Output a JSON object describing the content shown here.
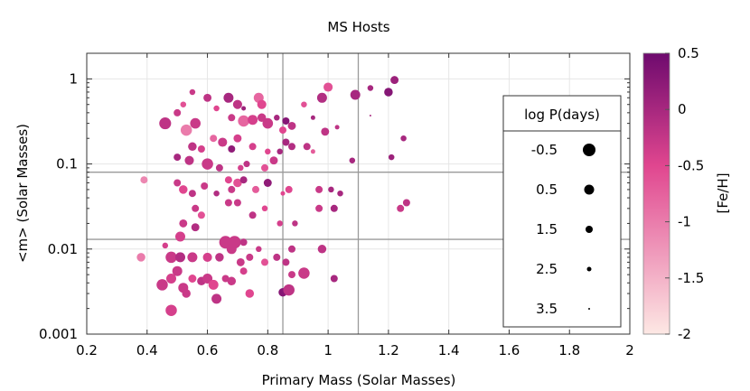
{
  "chart_data": {
    "type": "scatter",
    "title": "MS Hosts",
    "xlabel": "Primary Mass (Solar Masses)",
    "ylabel": "<m> (Solar Masses)",
    "xlim": [
      0.2,
      2.0
    ],
    "ylim": [
      0.001,
      2.0
    ],
    "y_scale": "log",
    "x_ticks": [
      0.2,
      0.4,
      0.6,
      0.8,
      1.0,
      1.2,
      1.4,
      1.6,
      1.8,
      2.0
    ],
    "x_tick_labels": [
      "0.2",
      "0.4",
      "0.6",
      "0.8",
      "1",
      "1.2",
      "1.4",
      "1.6",
      "1.8",
      "2"
    ],
    "y_ticks": [
      0.001,
      0.01,
      0.1,
      1
    ],
    "y_tick_labels": [
      "0.001",
      "0.01",
      "0.1",
      "1"
    ],
    "reference_lines": {
      "x": [
        0.85,
        1.1
      ],
      "y": [
        0.08,
        0.013
      ]
    },
    "grid": true,
    "colorbar": {
      "label": "[Fe/H]",
      "range": [
        -2,
        0.5
      ],
      "ticks": [
        0.5,
        0,
        -0.5,
        -1,
        -1.5,
        -2
      ],
      "tick_labels": [
        "0.5",
        "0",
        "-0.5",
        "-1",
        "-1.5",
        "-2"
      ],
      "color_low": "#fde8e4",
      "color_mid": "#e0468f",
      "color_high": "#6e0a6e"
    },
    "size_legend": {
      "title": "log P(days)",
      "placement": "right",
      "entries": [
        {
          "label": "-0.5",
          "logP": -0.5
        },
        {
          "label": "0.5",
          "logP": 0.5
        },
        {
          "label": "1.5",
          "logP": 1.5
        },
        {
          "label": "2.5",
          "logP": 2.5
        },
        {
          "label": "3.5",
          "logP": 3.5
        }
      ]
    },
    "points": [
      {
        "x": 0.46,
        "y": 0.3,
        "logP": -0.2,
        "feh": -0.2
      },
      {
        "x": 0.5,
        "y": 0.4,
        "logP": 1.5,
        "feh": -0.3
      },
      {
        "x": 0.52,
        "y": 0.5,
        "logP": 2.0,
        "feh": -0.6
      },
      {
        "x": 0.55,
        "y": 0.7,
        "logP": 2.0,
        "feh": -0.3
      },
      {
        "x": 0.56,
        "y": 0.3,
        "logP": 0.3,
        "feh": -0.3
      },
      {
        "x": 0.53,
        "y": 0.25,
        "logP": 0.0,
        "feh": -1.0
      },
      {
        "x": 0.6,
        "y": 0.6,
        "logP": 1.2,
        "feh": -0.2
      },
      {
        "x": 0.63,
        "y": 0.45,
        "logP": 2.0,
        "feh": -0.5
      },
      {
        "x": 0.67,
        "y": 0.6,
        "logP": 0.5,
        "feh": 0.0
      },
      {
        "x": 0.7,
        "y": 0.5,
        "logP": 0.8,
        "feh": -0.2
      },
      {
        "x": 0.72,
        "y": 0.45,
        "logP": 2.5,
        "feh": 0.1
      },
      {
        "x": 0.77,
        "y": 0.6,
        "logP": 0.5,
        "feh": -0.8
      },
      {
        "x": 0.78,
        "y": 0.5,
        "logP": 0.8,
        "feh": -0.5
      },
      {
        "x": 0.68,
        "y": 0.35,
        "logP": 1.5,
        "feh": -0.3
      },
      {
        "x": 0.72,
        "y": 0.32,
        "logP": 0.0,
        "feh": -0.8
      },
      {
        "x": 0.75,
        "y": 0.33,
        "logP": 0.5,
        "feh": -0.4
      },
      {
        "x": 0.78,
        "y": 0.35,
        "logP": 1.0,
        "feh": -0.3
      },
      {
        "x": 0.8,
        "y": 0.3,
        "logP": 0.3,
        "feh": -0.3
      },
      {
        "x": 0.83,
        "y": 0.35,
        "logP": 2.0,
        "feh": 0.0
      },
      {
        "x": 0.85,
        "y": 0.25,
        "logP": 1.5,
        "feh": -0.5
      },
      {
        "x": 0.86,
        "y": 0.32,
        "logP": 1.5,
        "feh": 0.3
      },
      {
        "x": 0.88,
        "y": 0.28,
        "logP": 1.2,
        "feh": -0.2
      },
      {
        "x": 0.92,
        "y": 0.5,
        "logP": 2.0,
        "feh": -0.6
      },
      {
        "x": 0.95,
        "y": 0.35,
        "logP": 2.5,
        "feh": 0.0
      },
      {
        "x": 0.98,
        "y": 0.6,
        "logP": 0.5,
        "feh": -0.1
      },
      {
        "x": 1.0,
        "y": 0.8,
        "logP": 0.8,
        "feh": -0.6
      },
      {
        "x": 1.09,
        "y": 0.65,
        "logP": 0.5,
        "feh": 0.0
      },
      {
        "x": 1.14,
        "y": 0.78,
        "logP": 2.0,
        "feh": 0.0
      },
      {
        "x": 1.2,
        "y": 0.7,
        "logP": 1.0,
        "feh": 0.3
      },
      {
        "x": 1.22,
        "y": 0.97,
        "logP": 1.2,
        "feh": 0.1
      },
      {
        "x": 1.14,
        "y": 0.37,
        "logP": 3.5,
        "feh": 0.0
      },
      {
        "x": 1.03,
        "y": 0.27,
        "logP": 2.5,
        "feh": -0.2
      },
      {
        "x": 0.99,
        "y": 0.24,
        "logP": 1.2,
        "feh": -0.2
      },
      {
        "x": 0.55,
        "y": 0.16,
        "logP": 1.0,
        "feh": -0.2
      },
      {
        "x": 0.58,
        "y": 0.15,
        "logP": 1.5,
        "feh": -0.4
      },
      {
        "x": 0.62,
        "y": 0.2,
        "logP": 1.5,
        "feh": -0.8
      },
      {
        "x": 0.65,
        "y": 0.18,
        "logP": 0.8,
        "feh": -0.3
      },
      {
        "x": 0.68,
        "y": 0.15,
        "logP": 1.5,
        "feh": 0.2
      },
      {
        "x": 0.7,
        "y": 0.2,
        "logP": 1.2,
        "feh": -0.4
      },
      {
        "x": 0.75,
        "y": 0.16,
        "logP": 1.5,
        "feh": -0.4
      },
      {
        "x": 0.8,
        "y": 0.14,
        "logP": 2.0,
        "feh": -0.5
      },
      {
        "x": 0.84,
        "y": 0.14,
        "logP": 2.0,
        "feh": 0.0
      },
      {
        "x": 0.86,
        "y": 0.18,
        "logP": 1.5,
        "feh": 0.0
      },
      {
        "x": 0.88,
        "y": 0.16,
        "logP": 1.5,
        "feh": -0.1
      },
      {
        "x": 0.93,
        "y": 0.16,
        "logP": 1.5,
        "feh": -0.2
      },
      {
        "x": 0.95,
        "y": 0.14,
        "logP": 2.5,
        "feh": -0.7
      },
      {
        "x": 1.08,
        "y": 0.11,
        "logP": 2.0,
        "feh": 0.0
      },
      {
        "x": 1.21,
        "y": 0.12,
        "logP": 2.0,
        "feh": 0.1
      },
      {
        "x": 1.25,
        "y": 0.2,
        "logP": 2.0,
        "feh": 0.0
      },
      {
        "x": 0.5,
        "y": 0.12,
        "logP": 1.5,
        "feh": 0.0
      },
      {
        "x": 0.54,
        "y": 0.11,
        "logP": 0.8,
        "feh": -0.2
      },
      {
        "x": 0.6,
        "y": 0.1,
        "logP": 0.0,
        "feh": -0.3
      },
      {
        "x": 0.64,
        "y": 0.09,
        "logP": 1.5,
        "feh": -0.2
      },
      {
        "x": 0.71,
        "y": 0.09,
        "logP": 2.0,
        "feh": -0.4
      },
      {
        "x": 0.73,
        "y": 0.1,
        "logP": 1.8,
        "feh": -0.2
      },
      {
        "x": 0.79,
        "y": 0.09,
        "logP": 1.5,
        "feh": -0.6
      },
      {
        "x": 0.82,
        "y": 0.11,
        "logP": 1.2,
        "feh": -0.3
      },
      {
        "x": 0.39,
        "y": 0.065,
        "logP": 1.5,
        "feh": -1.1
      },
      {
        "x": 0.5,
        "y": 0.06,
        "logP": 1.5,
        "feh": -0.3
      },
      {
        "x": 0.52,
        "y": 0.05,
        "logP": 1.0,
        "feh": -0.5
      },
      {
        "x": 0.55,
        "y": 0.045,
        "logP": 1.5,
        "feh": -0.2
      },
      {
        "x": 0.59,
        "y": 0.055,
        "logP": 1.5,
        "feh": -0.3
      },
      {
        "x": 0.63,
        "y": 0.045,
        "logP": 2.0,
        "feh": -0.1
      },
      {
        "x": 0.67,
        "y": 0.065,
        "logP": 1.5,
        "feh": -0.5
      },
      {
        "x": 0.68,
        "y": 0.05,
        "logP": 1.5,
        "feh": -0.3
      },
      {
        "x": 0.7,
        "y": 0.06,
        "logP": 1.0,
        "feh": -0.6
      },
      {
        "x": 0.72,
        "y": 0.065,
        "logP": 1.5,
        "feh": 0.0
      },
      {
        "x": 0.76,
        "y": 0.05,
        "logP": 1.5,
        "feh": -0.7
      },
      {
        "x": 0.8,
        "y": 0.06,
        "logP": 1.2,
        "feh": 0.2
      },
      {
        "x": 0.85,
        "y": 0.045,
        "logP": 2.5,
        "feh": -0.5
      },
      {
        "x": 0.87,
        "y": 0.05,
        "logP": 1.5,
        "feh": -0.5
      },
      {
        "x": 0.97,
        "y": 0.05,
        "logP": 1.5,
        "feh": -0.3
      },
      {
        "x": 1.01,
        "y": 0.05,
        "logP": 2.0,
        "feh": 0.0
      },
      {
        "x": 1.04,
        "y": 0.045,
        "logP": 2.0,
        "feh": 0.0
      },
      {
        "x": 0.56,
        "y": 0.03,
        "logP": 1.5,
        "feh": -0.3
      },
      {
        "x": 0.58,
        "y": 0.025,
        "logP": 1.5,
        "feh": -0.6
      },
      {
        "x": 0.67,
        "y": 0.035,
        "logP": 1.5,
        "feh": -0.3
      },
      {
        "x": 0.7,
        "y": 0.035,
        "logP": 1.5,
        "feh": -0.3
      },
      {
        "x": 0.75,
        "y": 0.025,
        "logP": 1.5,
        "feh": -0.2
      },
      {
        "x": 0.79,
        "y": 0.03,
        "logP": 2.0,
        "feh": -0.5
      },
      {
        "x": 0.84,
        "y": 0.02,
        "logP": 2.0,
        "feh": -0.4
      },
      {
        "x": 0.89,
        "y": 0.02,
        "logP": 2.0,
        "feh": -0.2
      },
      {
        "x": 0.97,
        "y": 0.03,
        "logP": 1.5,
        "feh": -0.3
      },
      {
        "x": 1.02,
        "y": 0.03,
        "logP": 1.5,
        "feh": 0.0
      },
      {
        "x": 1.24,
        "y": 0.03,
        "logP": 1.5,
        "feh": -0.3
      },
      {
        "x": 1.26,
        "y": 0.035,
        "logP": 1.5,
        "feh": -0.2
      },
      {
        "x": 0.52,
        "y": 0.02,
        "logP": 1.2,
        "feh": -0.3
      },
      {
        "x": 0.56,
        "y": 0.018,
        "logP": 1.2,
        "feh": -0.1
      },
      {
        "x": 0.51,
        "y": 0.014,
        "logP": 0.5,
        "feh": -0.4
      },
      {
        "x": 0.46,
        "y": 0.011,
        "logP": 2.0,
        "feh": -0.4
      },
      {
        "x": 0.66,
        "y": 0.012,
        "logP": -0.5,
        "feh": -0.3
      },
      {
        "x": 0.69,
        "y": 0.012,
        "logP": -0.5,
        "feh": -0.3
      },
      {
        "x": 0.68,
        "y": 0.01,
        "logP": 0.5,
        "feh": -0.3
      },
      {
        "x": 0.72,
        "y": 0.012,
        "logP": 1.5,
        "feh": -0.2
      },
      {
        "x": 0.77,
        "y": 0.01,
        "logP": 2.0,
        "feh": -0.3
      },
      {
        "x": 0.83,
        "y": 0.008,
        "logP": 1.5,
        "feh": -0.2
      },
      {
        "x": 0.88,
        "y": 0.01,
        "logP": 1.5,
        "feh": -0.2
      },
      {
        "x": 0.98,
        "y": 0.01,
        "logP": 1.0,
        "feh": -0.2
      },
      {
        "x": 0.38,
        "y": 0.008,
        "logP": 1.0,
        "feh": -1.0
      },
      {
        "x": 0.48,
        "y": 0.008,
        "logP": 0.0,
        "feh": -0.3
      },
      {
        "x": 0.51,
        "y": 0.008,
        "logP": 0.5,
        "feh": -0.1
      },
      {
        "x": 0.55,
        "y": 0.008,
        "logP": 0.5,
        "feh": -0.3
      },
      {
        "x": 0.6,
        "y": 0.008,
        "logP": 0.8,
        "feh": -0.4
      },
      {
        "x": 0.64,
        "y": 0.008,
        "logP": 1.0,
        "feh": -0.2
      },
      {
        "x": 0.71,
        "y": 0.007,
        "logP": 1.2,
        "feh": -0.3
      },
      {
        "x": 0.74,
        "y": 0.008,
        "logP": 1.5,
        "feh": -0.3
      },
      {
        "x": 0.79,
        "y": 0.007,
        "logP": 1.5,
        "feh": -0.6
      },
      {
        "x": 0.86,
        "y": 0.007,
        "logP": 1.5,
        "feh": -0.2
      },
      {
        "x": 0.88,
        "y": 0.005,
        "logP": 1.5,
        "feh": -0.3
      },
      {
        "x": 0.92,
        "y": 0.0052,
        "logP": 0.0,
        "feh": -0.3
      },
      {
        "x": 1.02,
        "y": 0.0045,
        "logP": 1.5,
        "feh": 0.0
      },
      {
        "x": 0.45,
        "y": 0.0038,
        "logP": 0.0,
        "feh": -0.3
      },
      {
        "x": 0.48,
        "y": 0.0045,
        "logP": 0.5,
        "feh": -0.4
      },
      {
        "x": 0.5,
        "y": 0.0055,
        "logP": 0.5,
        "feh": -0.3
      },
      {
        "x": 0.52,
        "y": 0.0035,
        "logP": 0.5,
        "feh": -0.3
      },
      {
        "x": 0.53,
        "y": 0.003,
        "logP": 1.0,
        "feh": -0.3
      },
      {
        "x": 0.55,
        "y": 0.0045,
        "logP": 1.2,
        "feh": -0.5
      },
      {
        "x": 0.58,
        "y": 0.0042,
        "logP": 1.0,
        "feh": -0.2
      },
      {
        "x": 0.6,
        "y": 0.0045,
        "logP": 0.5,
        "feh": -0.3
      },
      {
        "x": 0.62,
        "y": 0.0038,
        "logP": 0.5,
        "feh": -0.5
      },
      {
        "x": 0.66,
        "y": 0.0045,
        "logP": 1.5,
        "feh": -0.3
      },
      {
        "x": 0.68,
        "y": 0.0042,
        "logP": 1.0,
        "feh": -0.3
      },
      {
        "x": 0.72,
        "y": 0.0055,
        "logP": 1.5,
        "feh": -0.4
      },
      {
        "x": 0.74,
        "y": 0.003,
        "logP": 1.0,
        "feh": -0.5
      },
      {
        "x": 0.63,
        "y": 0.0026,
        "logP": 0.5,
        "feh": -0.2
      },
      {
        "x": 0.48,
        "y": 0.0019,
        "logP": 0.0,
        "feh": -0.4
      },
      {
        "x": 0.85,
        "y": 0.0031,
        "logP": 1.0,
        "feh": 0.3
      },
      {
        "x": 0.87,
        "y": 0.0033,
        "logP": 0.0,
        "feh": -0.2
      }
    ]
  }
}
